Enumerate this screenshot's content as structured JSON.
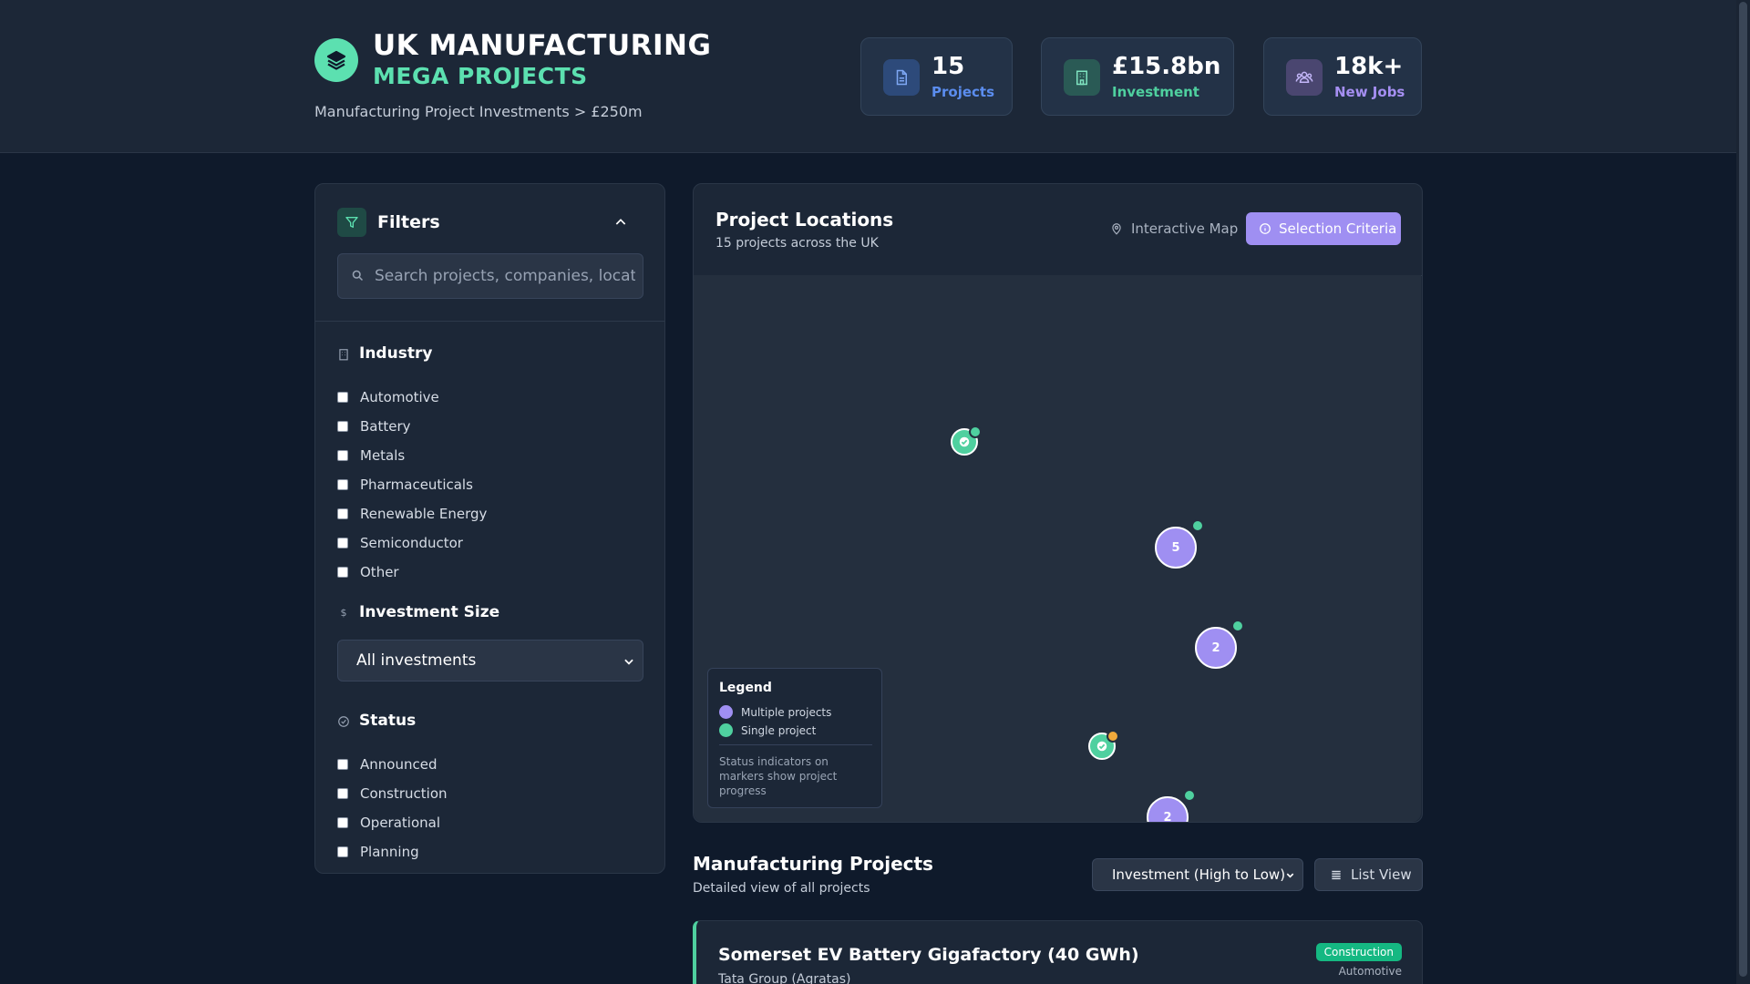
{
  "header": {
    "title_line1": "UK MANUFACTURING",
    "title_line2": "MEGA PROJECTS",
    "subtitle": "Manufacturing Project Investments > £250m",
    "stats": [
      {
        "value": "15",
        "label": "Projects",
        "icon": "document-icon",
        "color": "#5b8def"
      },
      {
        "value": "£15.8bn",
        "label": "Investment",
        "icon": "building-icon",
        "color": "#4fd09f"
      },
      {
        "value": "18k+",
        "label": "New Jobs",
        "icon": "users-icon",
        "color": "#a58ff2"
      }
    ]
  },
  "filters": {
    "title": "Filters",
    "search_placeholder": "Search projects, companies, locations...",
    "industry": {
      "title": "Industry",
      "options": [
        "Automotive",
        "Battery",
        "Metals",
        "Pharmaceuticals",
        "Renewable Energy",
        "Semiconductor",
        "Other"
      ]
    },
    "investment": {
      "title": "Investment Size",
      "selected": "All investments"
    },
    "status": {
      "title": "Status",
      "options": [
        "Announced",
        "Construction",
        "Operational",
        "Planning"
      ]
    }
  },
  "map": {
    "title": "Project Locations",
    "subtitle": "15 projects across the UK",
    "interactive_label": "Interactive Map",
    "criteria_button": "Selection Criteria",
    "clusters": [
      {
        "count": "5",
        "status_color": "#4fd09f"
      },
      {
        "count": "2",
        "status_color": "#4fd09f"
      },
      {
        "count": "2",
        "status_color": "#4fd09f"
      }
    ],
    "singles": [
      {
        "status_color": "#4fd09f"
      },
      {
        "status_color": "#f0a93b"
      }
    ],
    "legend": {
      "title": "Legend",
      "multiple": "Multiple projects",
      "single": "Single project",
      "note": "Status indicators on markers show project progress",
      "multiple_color": "#9f8ff2",
      "single_color": "#4fd09f"
    }
  },
  "projects": {
    "title": "Manufacturing Projects",
    "subtitle": "Detailed view of all projects",
    "sort_selected": "Investment (High to Low)",
    "view_button": "List View",
    "items": [
      {
        "name": "Somerset EV Battery Gigafactory (40 GWh)",
        "company": "Tata Group (Agratas)",
        "status": "Construction",
        "industry": "Automotive"
      }
    ]
  }
}
